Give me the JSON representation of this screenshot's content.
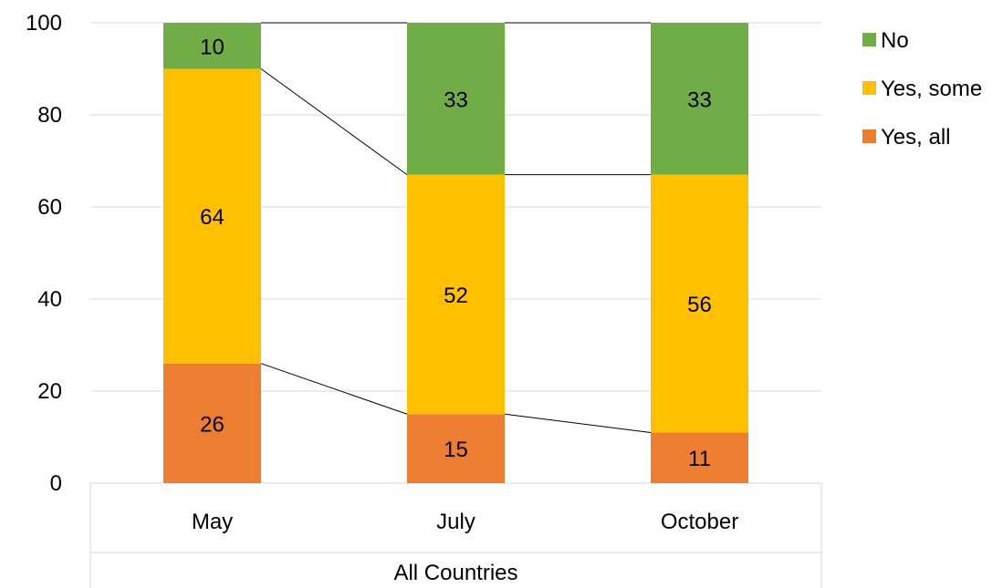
{
  "chart_data": {
    "type": "bar",
    "stacked": true,
    "categories": [
      "May",
      "July",
      "October"
    ],
    "group_label": "All Countries",
    "series": [
      {
        "name": "Yes, all",
        "color": "#ED7D31",
        "values": [
          26,
          15,
          11
        ]
      },
      {
        "name": "Yes, some",
        "color": "#FFC000",
        "values": [
          64,
          52,
          56
        ]
      },
      {
        "name": "No",
        "color": "#70AD47",
        "values": [
          10,
          33,
          33
        ]
      }
    ],
    "ylim": [
      0,
      100
    ],
    "yticks": [
      0,
      20,
      40,
      60,
      80,
      100
    ],
    "grid": true,
    "series_lines": true,
    "legend": {
      "position": "right",
      "order": [
        "No",
        "Yes, some",
        "Yes, all"
      ]
    }
  }
}
